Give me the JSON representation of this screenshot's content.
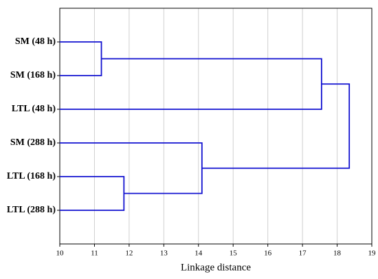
{
  "chart_data": {
    "type": "dendrogram",
    "leaves": [
      "SM (48 h)",
      "SM (168 h)",
      "LTL (48 h)",
      "SM (288 h)",
      "LTL (168 h)",
      "LTL (288 h)"
    ],
    "merges": [
      {
        "children": [
          0,
          1
        ],
        "height": 11.2
      },
      {
        "children": [
          4,
          5
        ],
        "height": 11.85
      },
      {
        "children": [
          6,
          2
        ],
        "height": 17.55
      },
      {
        "children": [
          3,
          7
        ],
        "height": 14.1
      },
      {
        "children": [
          8,
          9
        ],
        "height": 18.35
      }
    ],
    "xlabel": "Linkage distance",
    "xlim": [
      10,
      19
    ],
    "xticks": [
      10,
      11,
      12,
      13,
      14,
      15,
      16,
      17,
      18,
      19
    ],
    "grid": true,
    "color": "#1010d0"
  }
}
